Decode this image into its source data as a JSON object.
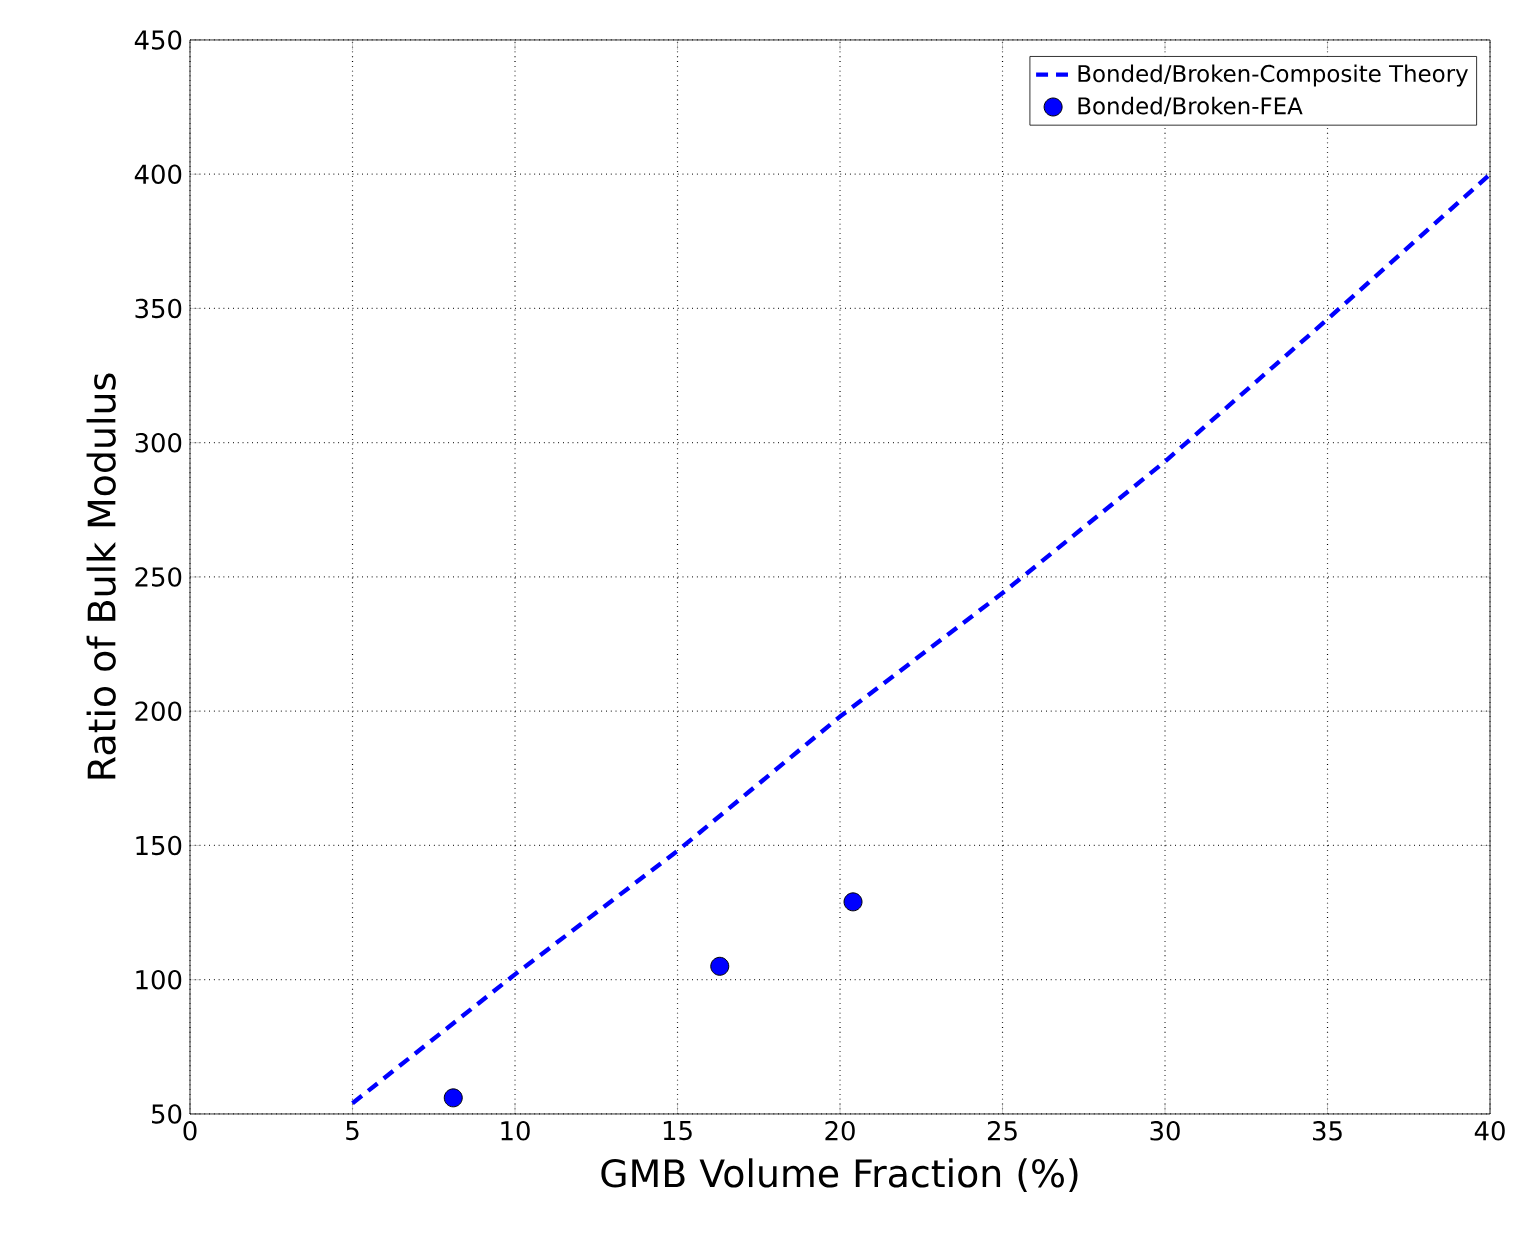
{
  "chart_data": {
    "type": "line",
    "xlabel": "GMB Volume Fraction (%)",
    "ylabel": "Ratio of Bulk Modulus",
    "xlim": [
      0,
      40
    ],
    "xticks": [
      0,
      5,
      10,
      15,
      20,
      25,
      30,
      35,
      40
    ],
    "ylim": [
      50,
      450
    ],
    "yticks": [
      50,
      100,
      150,
      200,
      250,
      300,
      350,
      400,
      450
    ],
    "grid": true,
    "legend": "top right",
    "series": [
      {
        "name": "Bonded/Broken-Composite Theory",
        "line_style": "dashed",
        "marker": "none",
        "color": "#0000ff",
        "x": [
          5,
          10,
          15,
          20,
          25,
          30,
          35,
          40
        ],
        "values": [
          54,
          102,
          148,
          198,
          244,
          293,
          346,
          400
        ]
      },
      {
        "name": "Bonded/Broken-FEA",
        "type": "scatter",
        "marker": "circle",
        "color": "#0000ff",
        "x": [
          8.1,
          16.3,
          20.4
        ],
        "values": [
          56,
          105,
          129
        ]
      }
    ]
  }
}
